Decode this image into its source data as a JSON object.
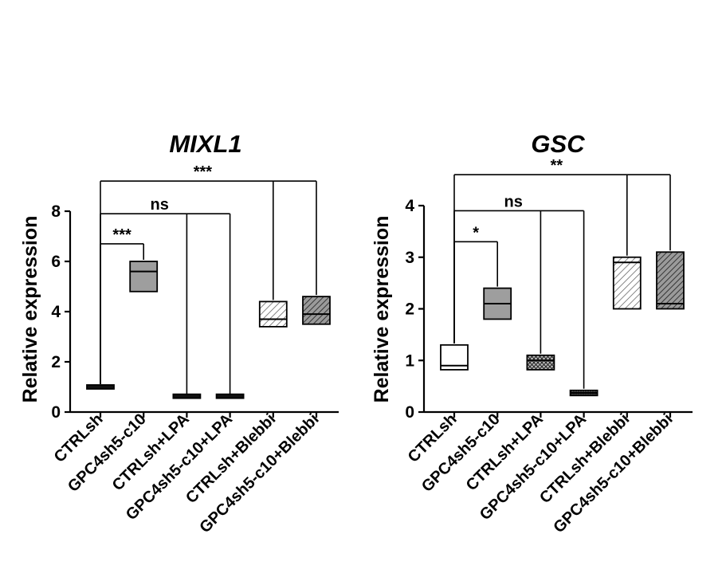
{
  "chart_data": [
    {
      "type": "box",
      "title": "MIXL1",
      "ylabel": "Relative expression",
      "xlabel": "",
      "ylim": [
        0,
        8
      ],
      "yticks": [
        0,
        2,
        4,
        6,
        8
      ],
      "categories": [
        "CTRLsh",
        "GPC4sh5-c10",
        "CTRLsh+LPA",
        "GPC4sh5-c10+LPA",
        "CTRLsh+Blebbi",
        "GPC4sh5-c10+Blebbi"
      ],
      "boxes": [
        {
          "min": 0.95,
          "median": 1.0,
          "max": 1.05,
          "fill": "solid-black"
        },
        {
          "min": 4.8,
          "median": 5.6,
          "max": 6.0,
          "fill": "gray"
        },
        {
          "min": 0.6,
          "median": 0.63,
          "max": 0.66,
          "fill": "solid-black"
        },
        {
          "min": 0.6,
          "median": 0.63,
          "max": 0.66,
          "fill": "solid-black"
        },
        {
          "min": 3.4,
          "median": 3.7,
          "max": 4.4,
          "fill": "light-hatch"
        },
        {
          "min": 3.5,
          "median": 3.9,
          "max": 4.6,
          "fill": "dark-hatch"
        }
      ],
      "comparisons": [
        {
          "from": 0,
          "to": [
            1
          ],
          "y": 6.7,
          "label": "***"
        },
        {
          "from": 0,
          "to": [
            2,
            3
          ],
          "y": 7.9,
          "label": "ns"
        },
        {
          "from": 0,
          "to": [
            4,
            5
          ],
          "y": 9.2,
          "label": "***"
        }
      ]
    },
    {
      "type": "box",
      "title": "GSC",
      "ylabel": "Relative expression",
      "xlabel": "",
      "ylim": [
        0,
        4
      ],
      "yticks": [
        0,
        1,
        2,
        3,
        4
      ],
      "categories": [
        "CTRLsh",
        "GPC4sh5-c10",
        "CTRLsh+LPA",
        "GPC4sh5-c10+LPA",
        "CTRLsh+Blebbi",
        "GPC4sh5-c10+Blebbi"
      ],
      "boxes": [
        {
          "min": 0.82,
          "median": 0.9,
          "max": 1.3,
          "fill": "white"
        },
        {
          "min": 1.8,
          "median": 2.1,
          "max": 2.4,
          "fill": "gray"
        },
        {
          "min": 0.82,
          "median": 1.0,
          "max": 1.1,
          "fill": "cross-hatch"
        },
        {
          "min": 0.32,
          "median": 0.37,
          "max": 0.42,
          "fill": "dotted"
        },
        {
          "min": 2.0,
          "median": 2.9,
          "max": 3.0,
          "fill": "light-hatch"
        },
        {
          "min": 2.0,
          "median": 2.1,
          "max": 3.1,
          "fill": "dark-hatch"
        }
      ],
      "comparisons": [
        {
          "from": 0,
          "to": [
            1
          ],
          "y": 3.3,
          "label": "*"
        },
        {
          "from": 0,
          "to": [
            2,
            3
          ],
          "y": 3.9,
          "label": "ns"
        },
        {
          "from": 0,
          "to": [
            4,
            5
          ],
          "y": 4.6,
          "label": "**"
        }
      ]
    }
  ]
}
